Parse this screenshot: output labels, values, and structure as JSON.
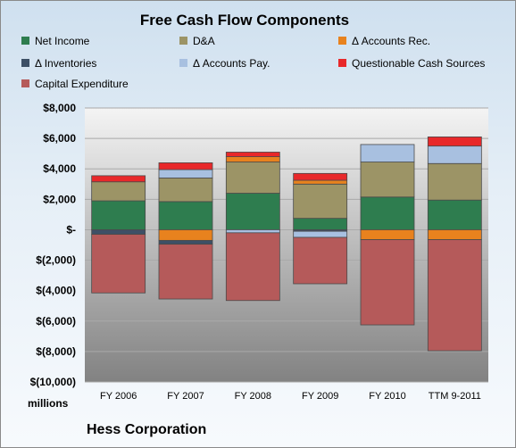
{
  "chart_data": {
    "type": "bar",
    "stacked": true,
    "title": "Free Cash Flow Components",
    "units_label": "millions",
    "footer": "Hess Corporation",
    "categories": [
      "FY 2006",
      "FY 2007",
      "FY 2008",
      "FY 2009",
      "FY 2010",
      "TTM 9-2011"
    ],
    "ylim": [
      -10000,
      8000
    ],
    "yticks": [
      8000,
      6000,
      4000,
      2000,
      0,
      -2000,
      -4000,
      -6000,
      -8000,
      -10000
    ],
    "ytick_labels": [
      "$8,000",
      "$6,000",
      "$4,000",
      "$2,000",
      "$-",
      "$(2,000)",
      "$(4,000)",
      "$(6,000)",
      "$(8,000)",
      "$(10,000)"
    ],
    "grid": true,
    "legend_position": "top",
    "series": [
      {
        "name": "Net Income",
        "color": "#2e7d4f",
        "values": [
          1900,
          1850,
          2400,
          750,
          2150,
          1950
        ]
      },
      {
        "name": "D&A",
        "color": "#9c9466",
        "values": [
          1250,
          1550,
          2050,
          2250,
          2300,
          2400
        ]
      },
      {
        "name": "Δ Accounts Rec.",
        "color": "#e8821e",
        "values": [
          0,
          -700,
          350,
          250,
          -650,
          -650
        ]
      },
      {
        "name": "Δ Inventories",
        "color": "#3d5066",
        "values": [
          -300,
          -250,
          0,
          -100,
          0,
          0
        ]
      },
      {
        "name": "Δ Accounts Pay.",
        "color": "#a8c0e0",
        "values": [
          0,
          550,
          -200,
          -400,
          1150,
          1150
        ]
      },
      {
        "name": "Questionable Cash Sources",
        "color": "#e8282a",
        "values": [
          400,
          450,
          300,
          450,
          0,
          600
        ]
      },
      {
        "name": "Capital Expenditure",
        "color": "#b55a5a",
        "values": [
          -3850,
          -3600,
          -4450,
          -3050,
          -5600,
          -7300
        ]
      }
    ]
  }
}
